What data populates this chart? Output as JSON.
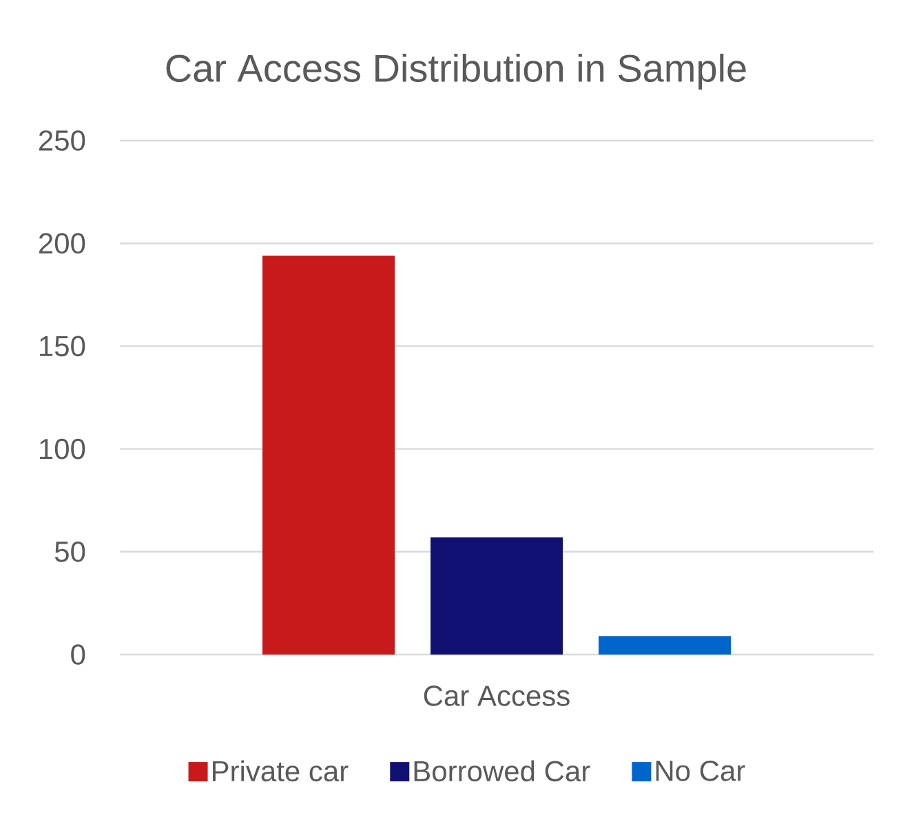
{
  "chart_data": {
    "type": "bar",
    "title": "Car Access Distribution in Sample",
    "categories": [
      "Car Access"
    ],
    "series": [
      {
        "name": "Private car",
        "color": "#c81a1a",
        "values": [
          194
        ]
      },
      {
        "name": "Borrowed Car",
        "color": "#111174",
        "values": [
          57
        ]
      },
      {
        "name": "No Car",
        "color": "#0066cc",
        "values": [
          9
        ]
      }
    ],
    "ylim": [
      0,
      250
    ],
    "yticks": [
      0,
      50,
      100,
      150,
      200,
      250
    ],
    "grid": "y",
    "legend": "bottom"
  }
}
